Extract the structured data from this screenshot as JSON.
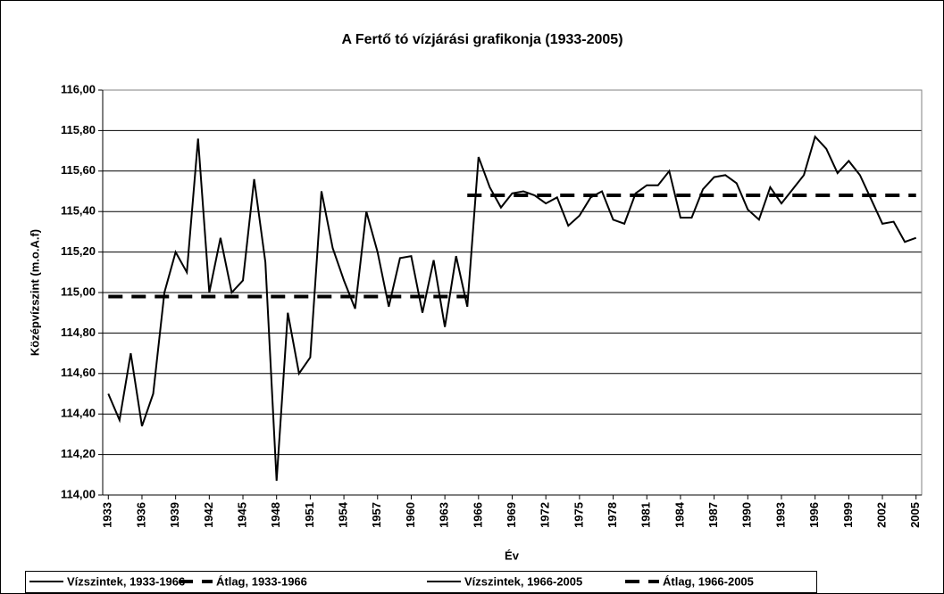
{
  "chart_data": {
    "type": "line",
    "title": "A Fertő tó vízjárási grafikonja (1933-2005)",
    "y_label": "Középvízszint (m.o.A.f)",
    "x_label": "Év",
    "xlim": [
      1932.5,
      2005.5
    ],
    "xticks": [
      1933,
      1936,
      1939,
      1942,
      1945,
      1948,
      1951,
      1954,
      1957,
      1960,
      1963,
      1966,
      1969,
      1972,
      1975,
      1978,
      1981,
      1984,
      1987,
      1990,
      1993,
      1996,
      1999,
      2002,
      2005
    ],
    "ylim": [
      114,
      116
    ],
    "yticks": [
      {
        "value": 114,
        "label": "114,00"
      },
      {
        "value": 114.2,
        "label": "114,20"
      },
      {
        "value": 114.4,
        "label": "114,40"
      },
      {
        "value": 114.6,
        "label": "114,60"
      },
      {
        "value": 114.8,
        "label": "114,80"
      },
      {
        "value": 115,
        "label": "115,00"
      },
      {
        "value": 115.2,
        "label": "115,20"
      },
      {
        "value": 115.4,
        "label": "115,40"
      },
      {
        "value": 115.6,
        "label": "115,60"
      },
      {
        "value": 115.8,
        "label": "115,80"
      },
      {
        "value": 116,
        "label": "116,00"
      }
    ],
    "grid": true,
    "legend": "bottom",
    "series": [
      {
        "name": "Vízszintek, 1933-1966",
        "color": "#000000",
        "linestyle": "solid",
        "x": [
          1933,
          1934,
          1935,
          1936,
          1937,
          1938,
          1939,
          1940,
          1941,
          1942,
          1943,
          1944,
          1945,
          1946,
          1947,
          1948,
          1949,
          1950,
          1951,
          1952,
          1953,
          1954,
          1955,
          1956,
          1957,
          1958,
          1959,
          1960,
          1961,
          1962,
          1963,
          1964,
          1965,
          1966
        ],
        "values": [
          114.5,
          114.37,
          114.7,
          114.34,
          114.5,
          115.0,
          115.2,
          115.1,
          115.76,
          115.0,
          115.27,
          115.0,
          115.06,
          115.56,
          115.15,
          114.07,
          114.9,
          114.6,
          114.68,
          115.5,
          115.22,
          115.06,
          114.92,
          115.4,
          115.2,
          114.93,
          115.17,
          115.18,
          114.9,
          115.16,
          114.83,
          115.18,
          114.93,
          115.67
        ]
      },
      {
        "name": "Átlag, 1933-1966",
        "color": "#000000",
        "linestyle": "dashed",
        "x": [
          1933,
          1965
        ],
        "values": [
          114.98,
          114.98
        ]
      },
      {
        "name": "Vízszintek, 1966-2005",
        "color": "#000000",
        "linestyle": "solid",
        "x": [
          1966,
          1967,
          1968,
          1969,
          1970,
          1971,
          1972,
          1973,
          1974,
          1975,
          1976,
          1977,
          1978,
          1979,
          1980,
          1981,
          1982,
          1983,
          1984,
          1985,
          1986,
          1987,
          1988,
          1989,
          1990,
          1991,
          1992,
          1993,
          1994,
          1995,
          1996,
          1997,
          1998,
          1999,
          2000,
          2001,
          2002,
          2003,
          2004,
          2005
        ],
        "values": [
          115.67,
          115.52,
          115.42,
          115.49,
          115.5,
          115.48,
          115.44,
          115.47,
          115.33,
          115.38,
          115.47,
          115.5,
          115.36,
          115.34,
          115.49,
          115.53,
          115.53,
          115.6,
          115.37,
          115.37,
          115.51,
          115.57,
          115.58,
          115.54,
          115.41,
          115.36,
          115.52,
          115.44,
          115.51,
          115.58,
          115.77,
          115.71,
          115.59,
          115.65,
          115.58,
          115.46,
          115.34,
          115.35,
          115.25,
          115.27
        ]
      },
      {
        "name": "Átlag, 1966-2005",
        "color": "#000000",
        "linestyle": "dashed",
        "x": [
          1965,
          2005
        ],
        "values": [
          115.48,
          115.48
        ]
      }
    ]
  }
}
